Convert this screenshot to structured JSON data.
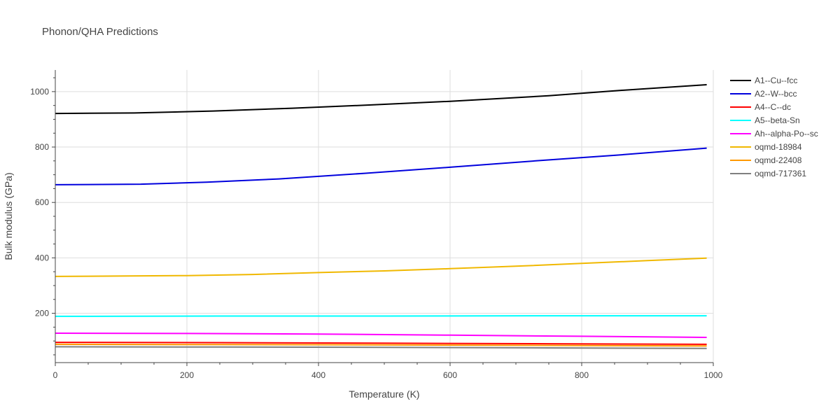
{
  "chart_data": {
    "type": "line",
    "title": "Phonon/QHA Predictions",
    "xlabel": "Temperature (K)",
    "ylabel": "Bulk modulus (GPa)",
    "xlim": [
      0,
      1000
    ],
    "ylim": [
      22,
      1078
    ],
    "xticks": [
      0,
      200,
      400,
      600,
      800,
      1000
    ],
    "yticks": [
      200,
      400,
      600,
      800,
      1000
    ],
    "grid": true,
    "legend_position": "right",
    "series": [
      {
        "name": "A1--Cu--fcc",
        "color": "#000000",
        "x": [
          0,
          120,
          240,
          360,
          480,
          600,
          750,
          850,
          990
        ],
        "y": [
          921,
          923,
          930,
          940,
          952,
          965,
          985,
          1003,
          1025
        ]
      },
      {
        "name": "A2--W--bcc",
        "color": "#0000dd",
        "x": [
          0,
          130,
          230,
          340,
          470,
          600,
          730,
          850,
          990
        ],
        "y": [
          664,
          666,
          673,
          685,
          705,
          727,
          750,
          770,
          796
        ]
      },
      {
        "name": "A4--C--dc",
        "color": "#ff0000",
        "x": [
          0,
          250,
          500,
          750,
          990
        ],
        "y": [
          95,
          94,
          92,
          90,
          88
        ]
      },
      {
        "name": "A5--beta-Sn",
        "color": "#00ffff",
        "x": [
          0,
          250,
          500,
          750,
          990
        ],
        "y": [
          189,
          190,
          190,
          191,
          191
        ]
      },
      {
        "name": "Ah--alpha-Po--sc",
        "color": "#ff00ff",
        "x": [
          0,
          200,
          400,
          600,
          800,
          990
        ],
        "y": [
          128,
          127,
          125,
          121,
          117,
          113
        ]
      },
      {
        "name": "oqmd-18984",
        "color": "#f0b800",
        "x": [
          0,
          200,
          300,
          400,
          500,
          600,
          700,
          800,
          900,
          990
        ],
        "y": [
          333,
          336,
          340,
          347,
          353,
          361,
          370,
          380,
          390,
          399
        ]
      },
      {
        "name": "oqmd-22408",
        "color": "#ff9900",
        "x": [
          0,
          250,
          500,
          750,
          990
        ],
        "y": [
          88,
          87,
          86,
          84,
          82
        ]
      },
      {
        "name": "oqmd-717361",
        "color": "#808080",
        "x": [
          0,
          250,
          500,
          750,
          990
        ],
        "y": [
          79,
          78,
          77,
          75,
          73
        ]
      }
    ]
  }
}
